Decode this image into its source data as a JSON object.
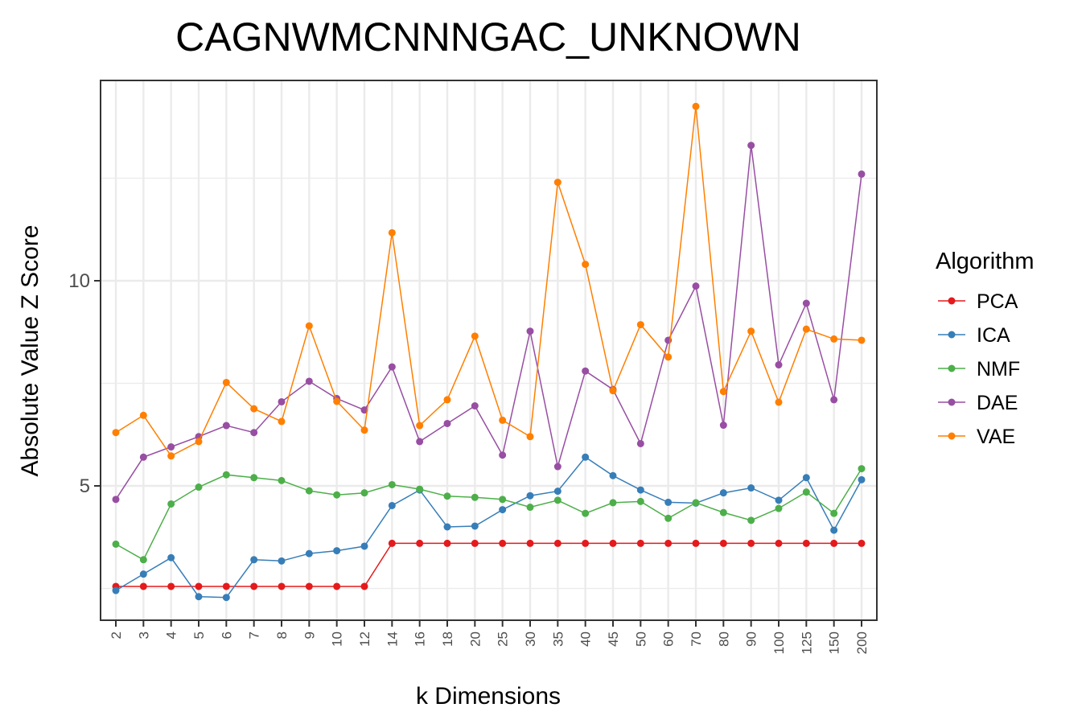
{
  "chart_data": {
    "type": "line",
    "title": "CAGNWMCNNNGAC_UNKNOWN",
    "xlabel": "k Dimensions",
    "ylabel": "Absolute Value Z Score",
    "categories": [
      "2",
      "3",
      "4",
      "5",
      "6",
      "7",
      "8",
      "9",
      "10",
      "12",
      "14",
      "16",
      "18",
      "20",
      "25",
      "30",
      "35",
      "40",
      "45",
      "50",
      "60",
      "70",
      "80",
      "90",
      "100",
      "125",
      "150",
      "200"
    ],
    "y_ticks": [
      5,
      10
    ],
    "ylim": [
      1.6,
      14.8
    ],
    "grid": true,
    "legend": {
      "title": "Algorithm",
      "position": "right"
    },
    "series": [
      {
        "name": "PCA",
        "color": "#e41a1c",
        "values": [
          2.55,
          2.55,
          2.55,
          2.55,
          2.55,
          2.55,
          2.55,
          2.55,
          2.55,
          2.55,
          3.6,
          3.6,
          3.6,
          3.6,
          3.6,
          3.6,
          3.6,
          3.6,
          3.6,
          3.6,
          3.6,
          3.6,
          3.6,
          3.6,
          3.6,
          3.6,
          3.6,
          3.6
        ]
      },
      {
        "name": "ICA",
        "color": "#377eb8",
        "values": [
          2.45,
          2.85,
          3.25,
          2.3,
          2.28,
          3.2,
          3.17,
          3.35,
          3.42,
          3.53,
          4.52,
          4.9,
          4.0,
          4.02,
          4.42,
          4.76,
          4.87,
          5.7,
          5.25,
          4.9,
          4.6,
          4.58,
          4.83,
          4.95,
          4.65,
          5.2,
          3.92,
          5.15
        ]
      },
      {
        "name": "NMF",
        "color": "#4daf4a",
        "values": [
          3.58,
          3.2,
          4.56,
          4.97,
          5.27,
          5.2,
          5.13,
          4.88,
          4.78,
          4.83,
          5.03,
          4.92,
          4.75,
          4.72,
          4.67,
          4.48,
          4.65,
          4.33,
          4.59,
          4.62,
          4.21,
          4.59,
          4.35,
          4.16,
          4.45,
          4.85,
          4.33,
          5.42
        ]
      },
      {
        "name": "DAE",
        "color": "#984ea3",
        "values": [
          4.67,
          5.7,
          5.95,
          6.2,
          6.47,
          6.3,
          7.05,
          7.55,
          7.13,
          6.85,
          7.9,
          6.08,
          6.52,
          6.95,
          5.75,
          8.77,
          5.47,
          7.8,
          7.35,
          6.03,
          8.55,
          9.87,
          6.48,
          13.3,
          7.95,
          9.45,
          7.1,
          12.6
        ]
      },
      {
        "name": "VAE",
        "color": "#ff7f00",
        "values": [
          6.3,
          6.72,
          5.73,
          6.08,
          7.52,
          6.88,
          6.57,
          8.9,
          7.06,
          6.36,
          11.17,
          6.47,
          7.1,
          8.65,
          6.6,
          6.2,
          12.4,
          10.4,
          7.32,
          8.93,
          8.14,
          14.25,
          7.3,
          8.77,
          7.04,
          8.82,
          8.58,
          8.55
        ]
      }
    ]
  }
}
